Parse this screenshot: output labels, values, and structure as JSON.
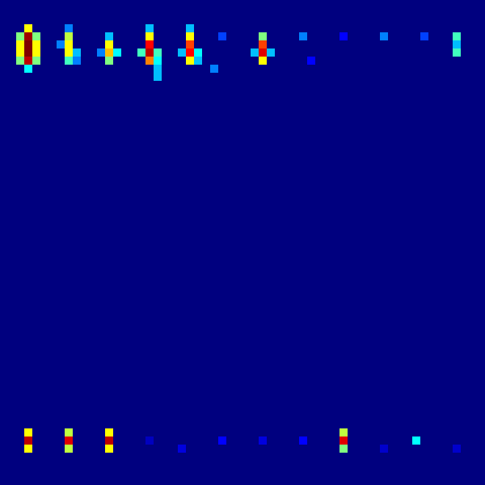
{
  "chart_data": {
    "type": "heatmap",
    "tick_labels": false,
    "xlim": [
      0,
      60
    ],
    "ylim": [
      0,
      60
    ],
    "color_range": [
      0,
      1
    ],
    "background": 0,
    "cells": [
      [
        3,
        3,
        0.6
      ],
      [
        3,
        4,
        0.95
      ],
      [
        3,
        5,
        1.0
      ],
      [
        3,
        6,
        1.0
      ],
      [
        3,
        7,
        0.9
      ],
      [
        3,
        8,
        0.4
      ],
      [
        2,
        4,
        0.5
      ],
      [
        2,
        5,
        0.6
      ],
      [
        2,
        6,
        0.6
      ],
      [
        2,
        7,
        0.5
      ],
      [
        4,
        4,
        0.5
      ],
      [
        4,
        5,
        0.6
      ],
      [
        4,
        6,
        0.6
      ],
      [
        4,
        7,
        0.5
      ],
      [
        8,
        3,
        0.3
      ],
      [
        8,
        4,
        0.55
      ],
      [
        8,
        5,
        0.6
      ],
      [
        8,
        6,
        0.6
      ],
      [
        8,
        7,
        0.45
      ],
      [
        9,
        6,
        0.35
      ],
      [
        9,
        7,
        0.3
      ],
      [
        7,
        5,
        0.3
      ],
      [
        13,
        4,
        0.35
      ],
      [
        13,
        5,
        0.6
      ],
      [
        13,
        6,
        0.65
      ],
      [
        13,
        7,
        0.5
      ],
      [
        14,
        6,
        0.4
      ],
      [
        12,
        6,
        0.3
      ],
      [
        18,
        3,
        0.35
      ],
      [
        18,
        4,
        0.6
      ],
      [
        18,
        5,
        0.8
      ],
      [
        18,
        6,
        0.9
      ],
      [
        18,
        7,
        0.7
      ],
      [
        17,
        6,
        0.45
      ],
      [
        19,
        6,
        0.45
      ],
      [
        19,
        7,
        0.4
      ],
      [
        19,
        8,
        0.35
      ],
      [
        19,
        9,
        0.35
      ],
      [
        23,
        3,
        0.35
      ],
      [
        23,
        4,
        0.6
      ],
      [
        23,
        5,
        0.75
      ],
      [
        23,
        6,
        0.8
      ],
      [
        23,
        7,
        0.6
      ],
      [
        22,
        6,
        0.35
      ],
      [
        24,
        6,
        0.4
      ],
      [
        24,
        7,
        0.35
      ],
      [
        26,
        8,
        0.3
      ],
      [
        27,
        4,
        0.25
      ],
      [
        32,
        4,
        0.5
      ],
      [
        32,
        5,
        0.75
      ],
      [
        32,
        6,
        0.85
      ],
      [
        32,
        7,
        0.6
      ],
      [
        31,
        6,
        0.35
      ],
      [
        33,
        6,
        0.35
      ],
      [
        37,
        4,
        0.3
      ],
      [
        38,
        7,
        0.2
      ],
      [
        42,
        4,
        0.2
      ],
      [
        47,
        4,
        0.3
      ],
      [
        52,
        4,
        0.25
      ],
      [
        56,
        4,
        0.45
      ],
      [
        56,
        5,
        0.35
      ],
      [
        56,
        6,
        0.45
      ],
      [
        3,
        53,
        0.6
      ],
      [
        3,
        54,
        0.9
      ],
      [
        3,
        55,
        0.6
      ],
      [
        8,
        53,
        0.55
      ],
      [
        8,
        54,
        0.85
      ],
      [
        8,
        55,
        0.55
      ],
      [
        13,
        53,
        0.6
      ],
      [
        13,
        54,
        0.9
      ],
      [
        13,
        55,
        0.6
      ],
      [
        18,
        54,
        0.1
      ],
      [
        22,
        55,
        0.15
      ],
      [
        27,
        54,
        0.2
      ],
      [
        32,
        54,
        0.15
      ],
      [
        37,
        54,
        0.2
      ],
      [
        42,
        53,
        0.55
      ],
      [
        42,
        54,
        0.85
      ],
      [
        42,
        55,
        0.5
      ],
      [
        47,
        55,
        0.12
      ],
      [
        51,
        54,
        0.4
      ],
      [
        56,
        55,
        0.12
      ]
    ]
  }
}
